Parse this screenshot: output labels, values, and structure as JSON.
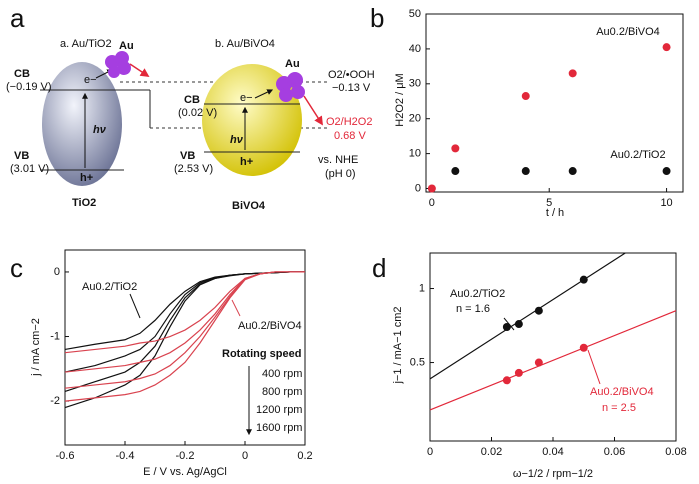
{
  "panel_labels": [
    "a",
    "b",
    "c",
    "d"
  ],
  "diagram": {
    "tio2": {
      "title": "a. Au/TiO2",
      "au": "Au",
      "cb": "CB",
      "cb_value": "(−0.19 V)",
      "electron": "e−",
      "hv": "hν",
      "vb": "VB",
      "vb_value": "(3.01 V)",
      "hole": "h+",
      "name": "TiO2"
    },
    "bivo4": {
      "title": "b. Au/BiVO4",
      "au": "Au",
      "cb": "CB",
      "cb_value": "(0.02 V)",
      "electron": "e−",
      "hv": "hν",
      "vb": "VB",
      "vb_value": "(2.53 V)",
      "hole": "h+",
      "name": "BiVO4"
    },
    "levels": {
      "o2_ooh": "O2/•OOH",
      "o2_ooh_value": "−0.13 V",
      "o2_h2o2": "O2/H2O2",
      "o2_h2o2_value": "0.68 V",
      "reference": "vs. NHE",
      "ph": "(pH 0)"
    }
  },
  "chart_data": [
    {
      "type": "scatter",
      "x_label": "t / h",
      "y_label": "H2O2 / μM",
      "xlim": [
        -0.25,
        10.7
      ],
      "xticks": [
        0,
        5,
        10
      ],
      "ylim": [
        -1,
        50
      ],
      "yticks": [
        0,
        10,
        20,
        30,
        40,
        50
      ],
      "series": [
        {
          "color": "#e2283a",
          "x": [
            0,
            1,
            4,
            6,
            10
          ],
          "values": [
            0,
            11.5,
            26.5,
            33,
            40.5
          ]
        },
        {
          "color": "#111111",
          "x": [
            1,
            4,
            6,
            10
          ],
          "values": [
            5,
            5,
            5,
            5
          ]
        }
      ],
      "annotations": [
        "Au0.2/BiVO4",
        "Au0.2/TiO2"
      ]
    },
    {
      "type": "line",
      "x_label": "E / V vs. Ag/AgCl",
      "y_label": "j / mA cm−2",
      "xlim": [
        -0.6,
        0.2
      ],
      "xticks": [
        -0.6,
        -0.4,
        -0.2,
        0,
        0.2
      ],
      "ylim": [
        -2.68,
        0.34
      ],
      "yticks": [
        -2,
        -1,
        0
      ],
      "x": [
        -0.6,
        -0.5,
        -0.4,
        -0.35,
        -0.3,
        -0.25,
        -0.2,
        -0.15,
        -0.1,
        -0.05,
        0,
        0.05,
        0.1,
        0.15,
        0.2
      ],
      "series": [
        {
          "color": "#111111",
          "values": [
            -1.2,
            -1.12,
            -1.05,
            -0.95,
            -0.75,
            -0.5,
            -0.3,
            -0.15,
            -0.08,
            -0.05,
            -0.03,
            -0.02,
            -0.01,
            0,
            0
          ]
        },
        {
          "color": "#111111",
          "values": [
            -1.55,
            -1.45,
            -1.3,
            -1.2,
            -1.0,
            -0.65,
            -0.35,
            -0.17,
            -0.09,
            -0.05,
            -0.03,
            -0.02,
            -0.01,
            0,
            0
          ]
        },
        {
          "color": "#111111",
          "values": [
            -1.85,
            -1.7,
            -1.55,
            -1.4,
            -1.15,
            -0.75,
            -0.4,
            -0.19,
            -0.1,
            -0.05,
            -0.03,
            -0.02,
            -0.01,
            0,
            0
          ]
        },
        {
          "color": "#111111",
          "values": [
            -2.1,
            -1.95,
            -1.75,
            -1.6,
            -1.3,
            -0.85,
            -0.45,
            -0.2,
            -0.1,
            -0.06,
            -0.03,
            -0.02,
            -0.01,
            0,
            0
          ]
        },
        {
          "color": "#d9434f",
          "values": [
            -1.25,
            -1.2,
            -1.15,
            -1.1,
            -1.07,
            -1.0,
            -0.9,
            -0.75,
            -0.55,
            -0.3,
            -0.1,
            -0.03,
            0,
            0,
            0
          ]
        },
        {
          "color": "#d9434f",
          "values": [
            -1.55,
            -1.5,
            -1.45,
            -1.4,
            -1.35,
            -1.25,
            -1.1,
            -0.9,
            -0.65,
            -0.35,
            -0.1,
            -0.03,
            0,
            0,
            0
          ]
        },
        {
          "color": "#d9434f",
          "values": [
            -1.8,
            -1.75,
            -1.7,
            -1.65,
            -1.58,
            -1.45,
            -1.25,
            -1.0,
            -0.7,
            -0.38,
            -0.11,
            -0.03,
            0,
            0,
            0
          ]
        },
        {
          "color": "#d9434f",
          "values": [
            -2.0,
            -1.95,
            -1.9,
            -1.85,
            -1.75,
            -1.6,
            -1.4,
            -1.1,
            -0.75,
            -0.4,
            -0.12,
            -0.03,
            0,
            0,
            0
          ]
        }
      ],
      "annotations": [
        "Au0.2/TiO2",
        "Au0.2/BiVO4",
        "Rotating speed",
        "400 rpm",
        "800 rpm",
        "1200 rpm",
        "1600 rpm"
      ]
    },
    {
      "type": "scatter",
      "x_label": "ω−1/2 / rpm−1/2",
      "y_label": "j−1 / mA−1 cm2",
      "xlim": [
        0,
        0.08
      ],
      "xticks": [
        0,
        0.02,
        0.04,
        0.06,
        0.08
      ],
      "ylim": [
        -0.03,
        1.24
      ],
      "yticks": [
        0.5,
        1
      ],
      "series": [
        {
          "type": "line",
          "color": "#111111",
          "x": [
            0,
            0.0635
          ],
          "values": [
            0.39,
            1.24
          ]
        },
        {
          "type": "line",
          "color": "#e2283a",
          "x": [
            0,
            0.08
          ],
          "values": [
            0.18,
            0.85
          ]
        },
        {
          "color": "#111111",
          "x": [
            0.025,
            0.0289,
            0.0354,
            0.05
          ],
          "values": [
            0.74,
            0.76,
            0.85,
            1.06
          ]
        },
        {
          "color": "#e2283a",
          "x": [
            0.025,
            0.0289,
            0.0354,
            0.05
          ],
          "values": [
            0.38,
            0.43,
            0.5,
            0.6
          ]
        }
      ],
      "annotations": [
        "Au0.2/TiO2",
        "n = 1.6",
        "Au0.2/BiVO4",
        "n = 2.5"
      ]
    }
  ]
}
